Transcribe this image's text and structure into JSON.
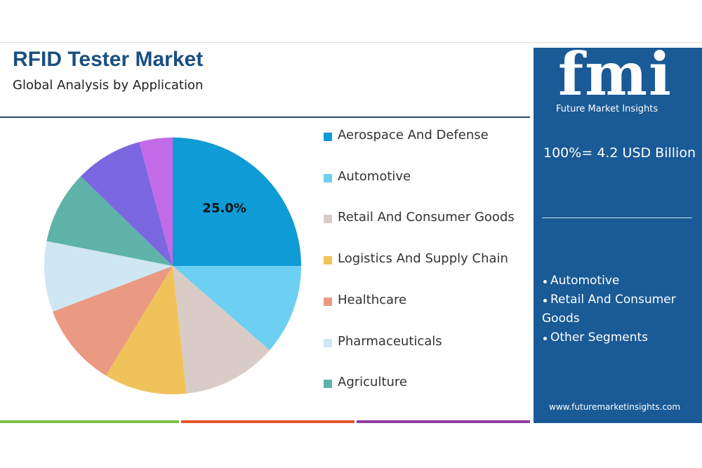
{
  "chart_data": {
    "type": "pie",
    "title": "RFID Tester Market",
    "subtitle": "Global Analysis by Application",
    "categories": [
      "Aerospace And Defense",
      "Automotive",
      "Retail And Consumer Goods",
      "Logistics And Supply Chain",
      "Healthcare",
      "Pharmaceuticals",
      "Agriculture",
      null,
      null
    ],
    "values": [
      25.0,
      11.4,
      11.9,
      10.4,
      10.5,
      8.9,
      9.2,
      8.5,
      4.2
    ],
    "value_labels": [
      "25.0%",
      null,
      null,
      null,
      null,
      null,
      null,
      null,
      null
    ],
    "colors": [
      "#0e9bd6",
      "#6dcff2",
      "#d9ccc6",
      "#f0c35a",
      "#ea9a82",
      "#cfe6f3",
      "#5fb3a8",
      "#7b68e0",
      "#c36ae8"
    ]
  },
  "panel": {
    "logo": "fmi",
    "logo_caption": "Future Market Insights",
    "total": "100%= 4.2 USD Billion",
    "bullets": [
      "Automotive",
      "Retail And Consumer Goods",
      "Other Segments"
    ],
    "url": "www.futuremarketinsights.com"
  }
}
